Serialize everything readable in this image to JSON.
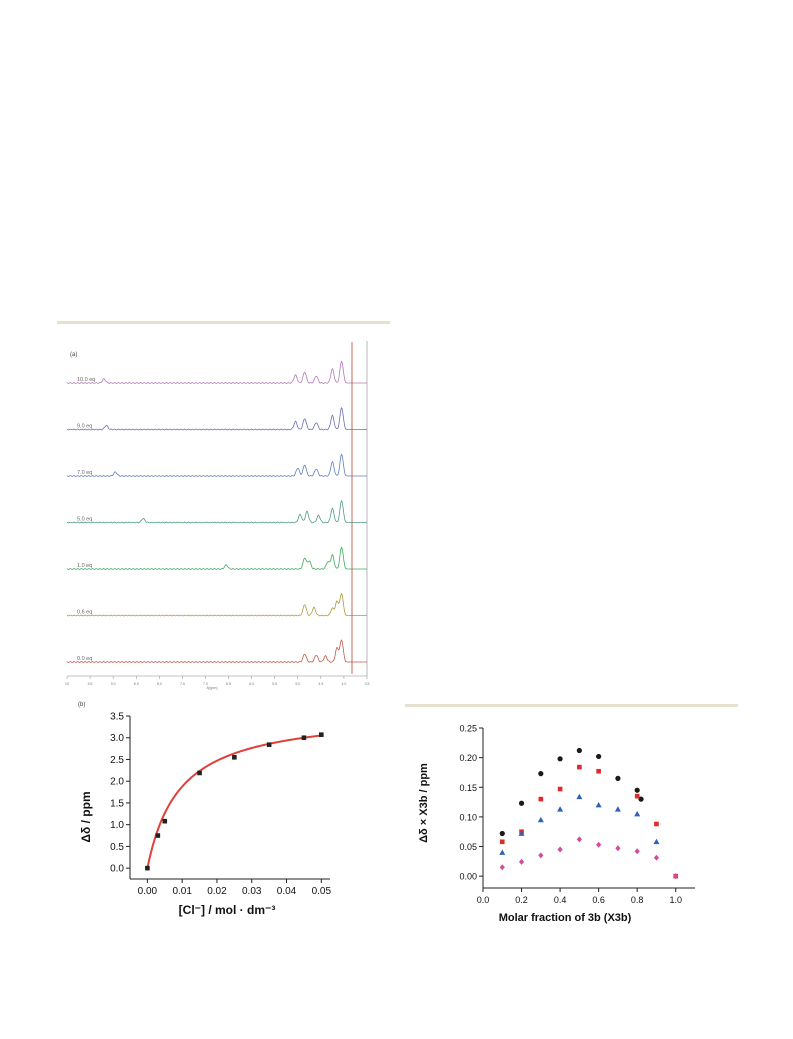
{
  "panel_a": {
    "label": "(a)",
    "spectra": [
      {
        "label": "10.0 eq",
        "color": "#b07ab8",
        "peaks": [
          [
            9.2,
            4
          ],
          [
            5.05,
            8
          ],
          [
            4.85,
            11
          ],
          [
            4.6,
            7
          ],
          [
            4.25,
            14
          ],
          [
            4.05,
            22
          ]
        ]
      },
      {
        "label": "9.0 eq",
        "color": "#6a6fb5",
        "peaks": [
          [
            9.15,
            4
          ],
          [
            5.05,
            8
          ],
          [
            4.85,
            11
          ],
          [
            4.6,
            7
          ],
          [
            4.25,
            14
          ],
          [
            4.05,
            22
          ]
        ]
      },
      {
        "label": "7.0 eq",
        "color": "#5e7fbf",
        "peaks": [
          [
            8.95,
            4
          ],
          [
            5.0,
            8
          ],
          [
            4.85,
            11
          ],
          [
            4.6,
            7
          ],
          [
            4.25,
            14
          ],
          [
            4.05,
            22
          ]
        ]
      },
      {
        "label": "5.0 eq",
        "color": "#4f9b86",
        "peaks": [
          [
            8.35,
            4
          ],
          [
            4.95,
            8
          ],
          [
            4.8,
            11
          ],
          [
            4.55,
            7
          ],
          [
            4.25,
            14
          ],
          [
            4.05,
            22
          ]
        ]
      },
      {
        "label": "1.0 eq",
        "color": "#3faa5a",
        "peaks": [
          [
            6.55,
            4
          ],
          [
            4.85,
            11
          ],
          [
            4.75,
            8
          ],
          [
            4.35,
            7
          ],
          [
            4.25,
            14
          ],
          [
            4.05,
            22
          ]
        ]
      },
      {
        "label": "0.6 eq",
        "color": "#b09a40",
        "peaks": [
          [
            4.85,
            11
          ],
          [
            4.65,
            8
          ],
          [
            4.25,
            7
          ],
          [
            4.15,
            14
          ],
          [
            4.05,
            22
          ]
        ]
      },
      {
        "label": "0.0 eq",
        "color": "#c05a4a",
        "peaks": [
          [
            4.85,
            8
          ],
          [
            4.6,
            7
          ],
          [
            4.4,
            6
          ],
          [
            4.15,
            14
          ],
          [
            4.05,
            22
          ]
        ]
      }
    ],
    "x_axis_label": "δ(ppm)",
    "x_ticks": [
      "10",
      "9.5",
      "9.0",
      "8.5",
      "8.0",
      "7.5",
      "7.0",
      "6.5",
      "6.0",
      "5.5",
      "5.0",
      "4.5",
      "4.0",
      "3.5"
    ],
    "x_range": [
      10,
      3.5
    ]
  },
  "chart_data": [
    {
      "type": "scatter",
      "panel_label": "(b)",
      "title": "",
      "xlabel": "[Cl⁻] / mol · dm⁻³",
      "ylabel": "Δδ / ppm",
      "xlim": [
        -0.005,
        0.0525
      ],
      "ylim": [
        -0.25,
        3.5
      ],
      "x_ticks": [
        0.0,
        0.01,
        0.02,
        0.03,
        0.04,
        0.05
      ],
      "x_tick_labels": [
        "0.00",
        "0.01",
        "0.02",
        "0.03",
        "0.04",
        "0.05"
      ],
      "y_ticks": [
        0.0,
        0.5,
        1.0,
        1.5,
        2.0,
        2.5,
        3.0,
        3.5
      ],
      "y_tick_labels": [
        "0.0",
        "0.5",
        "1.0",
        "1.5",
        "2.0",
        "2.5",
        "3.0",
        "3.5"
      ],
      "series": [
        {
          "marker": "square",
          "color": "#222222",
          "x": [
            0.0,
            0.003,
            0.005,
            0.015,
            0.025,
            0.035,
            0.045,
            0.05
          ],
          "y": [
            0.0,
            0.75,
            1.08,
            2.19,
            2.55,
            2.84,
            3.0,
            3.07
          ]
        }
      ],
      "fit": {
        "color": "#e0403a",
        "x_range": [
          0.0,
          0.05
        ],
        "model": "saturation",
        "dmax": 3.62,
        "k": 0.0093
      }
    },
    {
      "type": "scatter",
      "title": "",
      "xlabel": "Molar fraction of 3b (X3b)",
      "ylabel": "Δδ × X3b / ppm",
      "xlim": [
        0.0,
        1.1
      ],
      "ylim": [
        -0.02,
        0.25
      ],
      "x_ticks": [
        0.0,
        0.2,
        0.4,
        0.6,
        0.8,
        1.0
      ],
      "x_tick_labels": [
        "0.0",
        "0.2",
        "0.4",
        "0.6",
        "0.8",
        "1.0"
      ],
      "y_ticks": [
        0.0,
        0.05,
        0.1,
        0.15,
        0.2,
        0.25
      ],
      "y_tick_labels": [
        "0.00",
        "0.05",
        "0.10",
        "0.15",
        "0.20",
        "0.25"
      ],
      "series": [
        {
          "marker": "circle",
          "color": "#1a1a1a",
          "x": [
            0.1,
            0.2,
            0.3,
            0.4,
            0.5,
            0.6,
            0.7,
            0.8,
            0.82
          ],
          "y": [
            0.072,
            0.123,
            0.173,
            0.198,
            0.212,
            0.202,
            0.165,
            0.145,
            0.13
          ]
        },
        {
          "marker": "square",
          "color": "#e02a2a",
          "x": [
            0.1,
            0.2,
            0.3,
            0.4,
            0.5,
            0.6,
            0.8,
            0.9,
            1.0
          ],
          "y": [
            0.058,
            0.075,
            0.13,
            0.147,
            0.184,
            0.177,
            0.135,
            0.088,
            0.0
          ]
        },
        {
          "marker": "triangle",
          "color": "#2e62b8",
          "x": [
            0.1,
            0.2,
            0.3,
            0.4,
            0.5,
            0.6,
            0.7,
            0.8,
            0.9
          ],
          "y": [
            0.04,
            0.072,
            0.095,
            0.113,
            0.134,
            0.12,
            0.113,
            0.105,
            0.058
          ]
        },
        {
          "marker": "diamond",
          "color": "#d44aa0",
          "x": [
            0.1,
            0.2,
            0.3,
            0.4,
            0.5,
            0.6,
            0.7,
            0.8,
            0.9,
            1.0
          ],
          "y": [
            0.015,
            0.024,
            0.035,
            0.045,
            0.062,
            0.053,
            0.047,
            0.042,
            0.031,
            0.0
          ]
        }
      ]
    }
  ]
}
